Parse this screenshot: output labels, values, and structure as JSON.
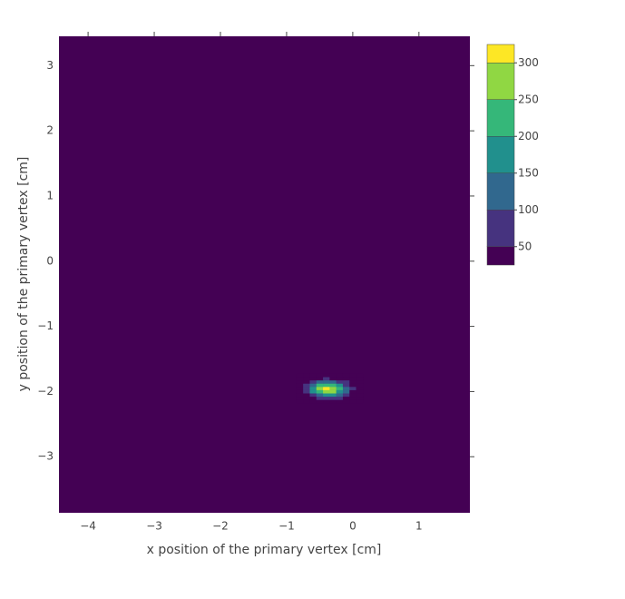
{
  "chart_data": {
    "type": "contour",
    "x_label": "x position of the primary vertex [cm]",
    "y_label": "y position of the primary vertex [cm]",
    "xlim": [
      -4.44,
      1.77
    ],
    "ylim": [
      -3.86,
      3.45
    ],
    "xticks": [
      {
        "value": -4,
        "label": "−4"
      },
      {
        "value": -3,
        "label": "−3"
      },
      {
        "value": -2,
        "label": "−2"
      },
      {
        "value": -1,
        "label": "−1"
      },
      0,
      1
    ],
    "yticks": [
      {
        "value": -3,
        "label": "−3"
      },
      {
        "value": -2,
        "label": "−2"
      },
      {
        "value": -1,
        "label": "−1"
      },
      0,
      1,
      2,
      3
    ],
    "x": [
      -0.8,
      -0.7,
      -0.6,
      -0.5,
      -0.4,
      -0.3,
      -0.2,
      -0.1,
      0,
      0.1
    ],
    "y": [
      -2.15,
      -2.1,
      -2.05,
      -2.0,
      -1.95,
      -1.9,
      -1.85,
      -1.8,
      -1.75
    ],
    "z": [
      [
        3,
        6,
        13,
        19,
        23,
        22,
        16,
        9,
        4,
        1
      ],
      [
        8,
        22,
        42,
        65,
        77,
        71,
        52,
        29,
        13,
        4
      ],
      [
        19,
        49,
        97,
        148,
        177,
        164,
        118,
        67,
        29,
        10
      ],
      [
        31,
        79,
        156,
        238,
        283,
        263,
        190,
        107,
        46,
        16
      ],
      [
        35,
        88,
        174,
        265,
        316,
        293,
        212,
        119,
        52,
        18
      ],
      [
        27,
        69,
        135,
        206,
        245,
        227,
        164,
        92,
        40,
        14
      ],
      [
        15,
        37,
        73,
        111,
        132,
        123,
        89,
        50,
        22,
        7
      ],
      [
        5,
        14,
        27,
        42,
        50,
        46,
        33,
        19,
        8,
        3
      ],
      [
        1,
        4,
        7,
        11,
        13,
        12,
        9,
        5,
        2,
        1
      ]
    ],
    "contour_size": 50,
    "zlim": [
      25,
      325
    ],
    "colorbar_ticks": [
      50,
      100,
      150,
      200,
      250,
      300
    ],
    "colorscale": [
      "#440154",
      "#46337f",
      "#31688e",
      "#21908d",
      "#35b779",
      "#90d743",
      "#fde725"
    ]
  }
}
